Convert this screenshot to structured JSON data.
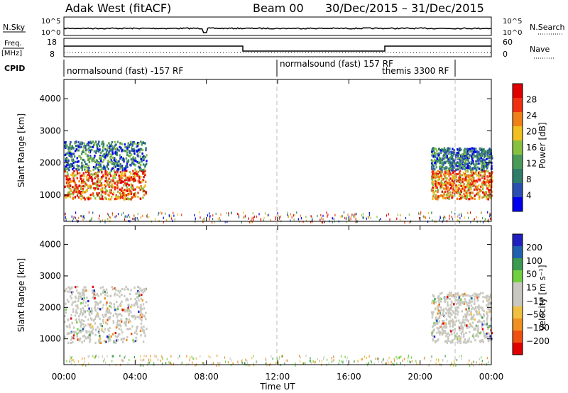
{
  "header": {
    "station": "Adak West (fitACF)",
    "beam": "Beam 00",
    "date_range": "30/Dec/2015 – 31/Dec/2015"
  },
  "noise_panel": {
    "left_label": "N.Sky",
    "right_label": "N.Search",
    "ticks_left": [
      "10^5",
      "10^0"
    ],
    "ticks_right": [
      "10^5",
      "10^0"
    ]
  },
  "freq_panel": {
    "left_label_top": "Freq.",
    "left_label_bottom": "[MHz]",
    "right_label": "Nave",
    "ticks_left": [
      "18",
      "8"
    ],
    "ticks_right": [
      "60",
      "0"
    ]
  },
  "cpid_panel": {
    "label": "CPID",
    "segments": [
      "normalsound (fast) -157 RF",
      "normalsound (fast) 157 RF",
      "themis 3300 RF"
    ]
  },
  "x_axis": {
    "label": "Time UT",
    "ticks": [
      "00:00",
      "04:00",
      "08:00",
      "12:00",
      "16:00",
      "20:00",
      "00:00"
    ]
  },
  "colors": {
    "power_scale": [
      "#0000ee",
      "#2a4fb0",
      "#2e7d6b",
      "#4a9a5a",
      "#88c040",
      "#f0c020",
      "#f08018",
      "#f03010",
      "#e00000"
    ],
    "velocity_scale": [
      "#e00000",
      "#f05010",
      "#f09020",
      "#f0c040",
      "#c8c8c0",
      "#c8c8c0",
      "#70d040",
      "#3a9a50",
      "#2060b0",
      "#2020c0"
    ]
  },
  "chart_data": [
    {
      "type": "heatmap",
      "title": "Power",
      "ylabel": "Slant Range [km]",
      "xlabel": "Time UT",
      "colorbar_label": "Power [dB]",
      "colorbar_ticks": [
        "28",
        "24",
        "20",
        "16",
        "12",
        "8",
        "4"
      ],
      "x_range_hours": [
        0,
        24
      ],
      "ylim": [
        180,
        4600
      ],
      "y_ticks": [
        "4000",
        "3000",
        "2000",
        "1000"
      ],
      "regions": [
        {
          "t0": 0.0,
          "t1": 4.6,
          "r0": 900,
          "r1": 1800,
          "level": "high"
        },
        {
          "t0": 0.0,
          "t1": 4.6,
          "r0": 1800,
          "r1": 2700,
          "level": "low"
        },
        {
          "t0": 20.6,
          "t1": 24.0,
          "r0": 900,
          "r1": 1800,
          "level": "high"
        },
        {
          "t0": 20.6,
          "t1": 24.0,
          "r0": 1800,
          "r1": 2500,
          "level": "low"
        },
        {
          "t0": 0.0,
          "t1": 24.0,
          "r0": 180,
          "r1": 500,
          "level": "sparse"
        }
      ]
    },
    {
      "type": "heatmap",
      "title": "Velocity",
      "ylabel": "Slant Range [km]",
      "xlabel": "Time UT",
      "colorbar_label": "Velocity [m s⁻¹]",
      "colorbar_ticks": [
        "200",
        "100",
        "50",
        "15",
        "−15",
        "−50",
        "−100",
        "−200"
      ],
      "x_range_hours": [
        0,
        24
      ],
      "ylim": [
        180,
        4600
      ],
      "y_ticks": [
        "4000",
        "3000",
        "2000",
        "1000"
      ],
      "regions": [
        {
          "t0": 0.0,
          "t1": 4.6,
          "r0": 900,
          "r1": 2700,
          "level": "ground"
        },
        {
          "t0": 20.6,
          "t1": 24.0,
          "r0": 900,
          "r1": 2500,
          "level": "ground"
        },
        {
          "t0": 0.0,
          "t1": 24.0,
          "r0": 180,
          "r1": 500,
          "level": "sparse"
        }
      ]
    }
  ]
}
